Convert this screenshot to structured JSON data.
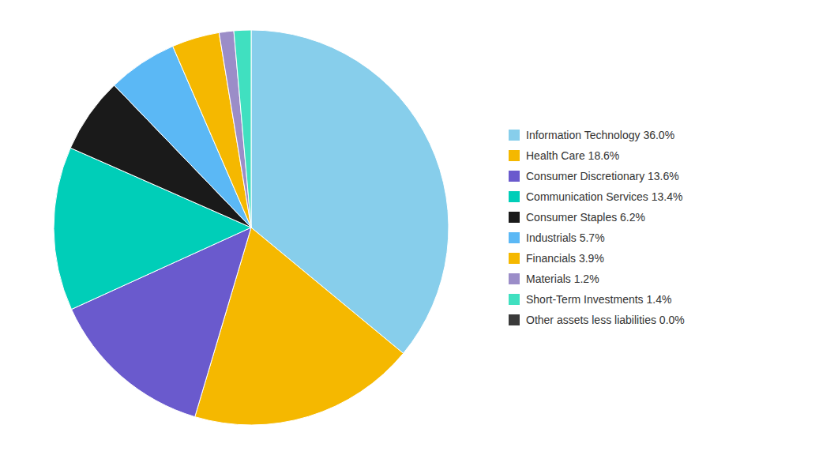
{
  "chart_data": {
    "type": "pie",
    "categories": [
      "Information Technology 36.0%",
      "Health Care 18.6%",
      "Consumer Discretionary 13.6%",
      "Communication Services 13.4%",
      "Consumer Staples 6.2%",
      "Industrials 5.7%",
      "Financials 3.9%",
      "Materials 1.2%",
      "Short-Term Investments 1.4%",
      "Other assets less liabilities 0.0%"
    ],
    "values": [
      36.0,
      18.6,
      13.6,
      13.4,
      6.2,
      5.7,
      3.9,
      1.2,
      1.4,
      0.0
    ],
    "colors": [
      "#87CEEB",
      "#F5B800",
      "#6A5ACD",
      "#00CEB8",
      "#1A1A1A",
      "#5BB8F5",
      "#F5B800",
      "#9B8DC8",
      "#40E0C0",
      "#3A3A3A"
    ],
    "legend": "right"
  }
}
